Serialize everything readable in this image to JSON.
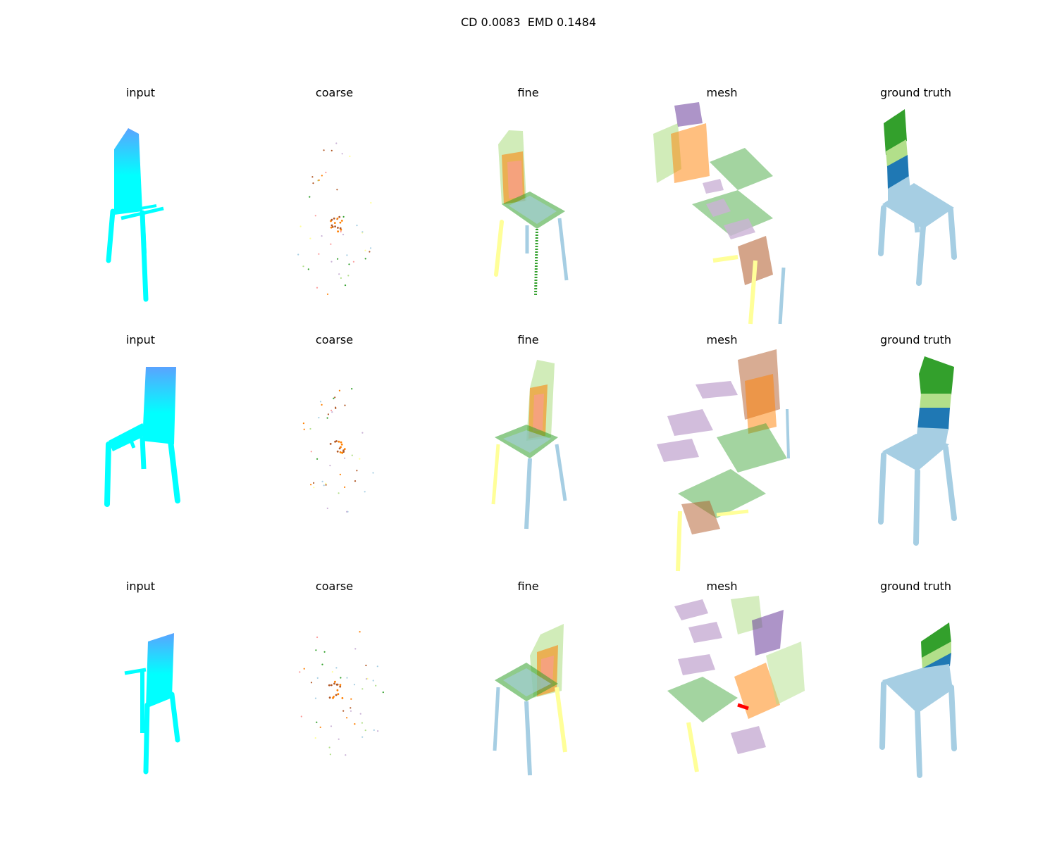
{
  "figure": {
    "suptitle": "CD 0.0083  EMD 0.1484"
  },
  "columns": [
    {
      "key": "input",
      "title": "input"
    },
    {
      "key": "coarse",
      "title": "coarse"
    },
    {
      "key": "fine",
      "title": "fine"
    },
    {
      "key": "mesh",
      "title": "mesh"
    },
    {
      "key": "gt",
      "title": "ground truth"
    }
  ],
  "rows": [
    {
      "view": "front-left"
    },
    {
      "view": "back-right"
    },
    {
      "view": "back-left"
    }
  ],
  "colors": {
    "input_top": "#5aa3ff",
    "input_bottom": "#00ffff",
    "light_blue": "#a6cee3",
    "dark_blue": "#1f78b4",
    "light_green": "#b2df8a",
    "dark_green": "#33a02c",
    "pink": "#fb9a99",
    "orange": "#ff7f00",
    "brown": "#b15928",
    "lavender": "#cab2d6",
    "purple": "#6a3d9a",
    "yellow": "#ffff99"
  }
}
